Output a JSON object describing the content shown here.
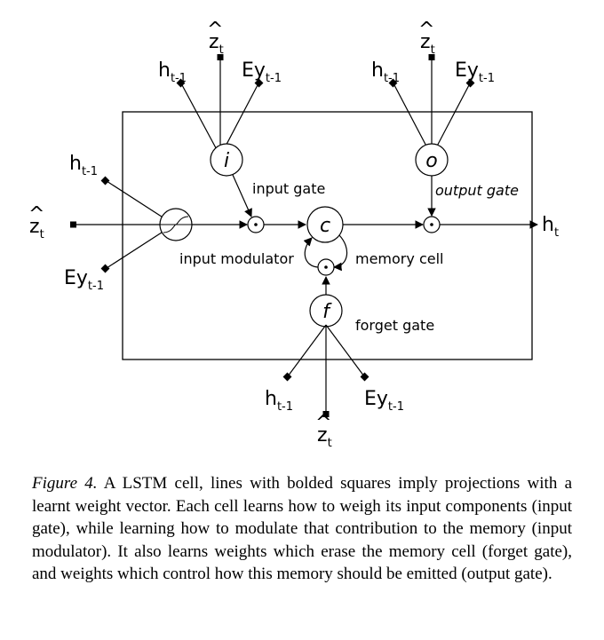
{
  "labels": {
    "input_gate": "input gate",
    "output_gate": "output gate",
    "input_modulator": "input modulator",
    "memory_cell": "memory cell",
    "forget_gate": "forget gate"
  },
  "nodes": {
    "input_gate": "i",
    "output_gate": "o",
    "forget_gate": "f",
    "cell": "c"
  },
  "vars": {
    "h": "h",
    "h_sub": "t-1",
    "ey": "Ey",
    "ey_sub": "t-1",
    "z": "z",
    "hat": "^",
    "z_sub": "t",
    "out": "h",
    "out_sub": "t"
  },
  "caption": {
    "figure_label": "Figure 4.",
    "text": "A LSTM cell, lines with bolded squares imply projections with a learnt weight vector. Each cell learns how to weigh its input components (input gate), while learning how to modulate that contribution to the memory (input modulator). It also learns weights which erase the memory cell (forget gate), and weights which control how this memory should be emitted (output gate)."
  }
}
